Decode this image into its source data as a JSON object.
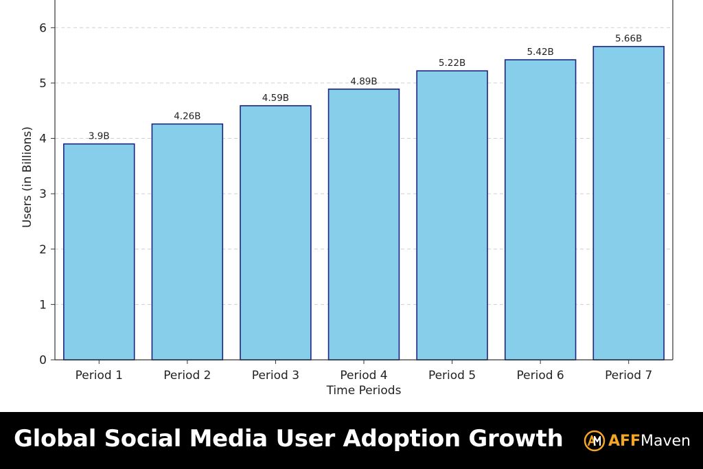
{
  "chart_data": {
    "type": "bar",
    "categories": [
      "Period 1",
      "Period 2",
      "Period 3",
      "Period 4",
      "Period 5",
      "Period 6",
      "Period 7"
    ],
    "values": [
      3.9,
      4.26,
      4.59,
      4.89,
      5.22,
      5.42,
      5.66
    ],
    "data_labels": [
      "3.9B",
      "4.26B",
      "4.59B",
      "4.89B",
      "5.22B",
      "5.42B",
      "5.66B"
    ],
    "xlabel": "Time Periods",
    "ylabel": "Users (in Billions)",
    "ylim": [
      0,
      6.5
    ],
    "yticks": [
      0,
      1,
      2,
      3,
      4,
      5,
      6
    ],
    "grid": "horizontal dashed",
    "bar_color": "#87ceeb",
    "bar_edge_color": "#1a237e"
  },
  "banner": {
    "title": "Global Social Media User Adoption Growth",
    "brand_prefix": "AFF",
    "brand_suffix": "Maven",
    "brand_accent": "#f5a623",
    "logo_icon": "am-monogram-icon"
  }
}
